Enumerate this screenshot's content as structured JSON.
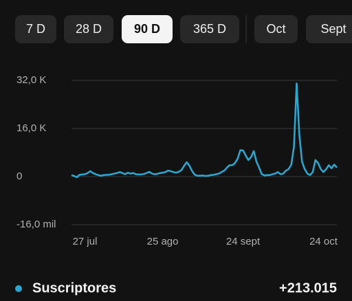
{
  "tabs": [
    "7 D",
    "28 D",
    "90 D",
    "365 D",
    "Oct",
    "Sept"
  ],
  "selected_tab": 2,
  "chart_data": {
    "type": "line",
    "categories": [
      null,
      null,
      null,
      null,
      null,
      "27 jul",
      null,
      null,
      null,
      null,
      null,
      null,
      null,
      null,
      null,
      null,
      null,
      null,
      null,
      null,
      null,
      null,
      null,
      null,
      null,
      null,
      null,
      null,
      null,
      null,
      null,
      null,
      null,
      null,
      "25 ago",
      null,
      null,
      null,
      null,
      null,
      null,
      null,
      null,
      null,
      null,
      null,
      null,
      null,
      null,
      null,
      null,
      null,
      null,
      null,
      null,
      null,
      null,
      null,
      null,
      null,
      null,
      null,
      null,
      null,
      "24 sept",
      null,
      null,
      null,
      null,
      null,
      null,
      null,
      null,
      null,
      null,
      null,
      null,
      null,
      null,
      null,
      null,
      null,
      null,
      null,
      null,
      null,
      null,
      null,
      null,
      null,
      null,
      null,
      null,
      null,
      "24 oct",
      null,
      null,
      null,
      null,
      null
    ],
    "series": [
      {
        "name": "Suscriptores",
        "color": "#2aa6cf",
        "values": [
          500,
          200,
          -200,
          600,
          700,
          800,
          1200,
          1800,
          1200,
          800,
          500,
          300,
          500,
          600,
          600,
          800,
          1000,
          1200,
          1500,
          1200,
          800,
          1300,
          1000,
          1200,
          800,
          700,
          700,
          900,
          1200,
          1600,
          1000,
          800,
          900,
          1200,
          1300,
          1500,
          2000,
          1800,
          1500,
          1300,
          1600,
          2200,
          3600,
          4800,
          3600,
          1800,
          600,
          300,
          300,
          400,
          200,
          300,
          500,
          600,
          800,
          1000,
          1500,
          2000,
          3000,
          3800,
          3800,
          4500,
          6000,
          8800,
          8700,
          7000,
          5500,
          6500,
          8500,
          5000,
          3000,
          800,
          400,
          500,
          500,
          800,
          1000,
          1500,
          800,
          1000,
          2000,
          2500,
          4000,
          10000,
          31000,
          14000,
          5000,
          2500,
          1000,
          500,
          1500,
          5500,
          4500,
          2500,
          1500,
          2500,
          3800,
          2800,
          4000,
          3000
        ]
      }
    ],
    "total": "+213.015",
    "ylim": [
      -16000,
      32000
    ],
    "yticks": [
      {
        "value": 32000,
        "label": "32,0 K"
      },
      {
        "value": 16000,
        "label": "16,0 K"
      },
      0,
      {
        "value": -16000,
        "label": "-16,0 mil"
      }
    ],
    "grid": true
  }
}
